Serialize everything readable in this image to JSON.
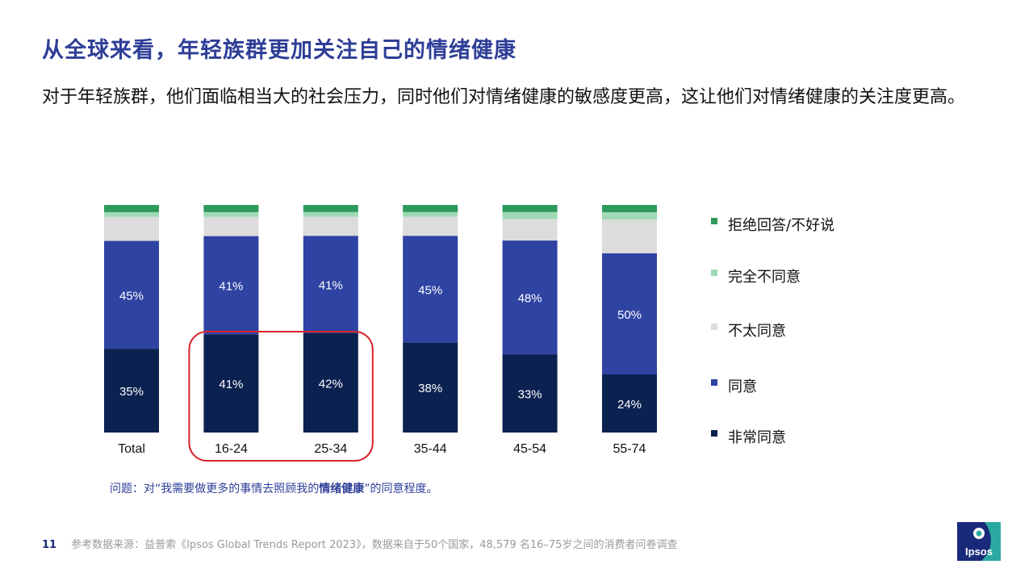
{
  "title": "从全球来看，年轻族群更加关注自己的情绪健康",
  "subtitle": "对于年轻族群，他们面临相当大的社会压力，同时他们对情绪健康的敏感度更高，这让他们对情绪健康的关注度更高。",
  "question": {
    "prefix": "问题：对“我需要做更多的事情去照顾我的",
    "bold": "情绪健康",
    "suffix": "”的同意程度。"
  },
  "footer": {
    "page": "11",
    "source": "参考数据来源：益普索《Ipsos Global Trends Report 2023》，数据来自于50个国家，48,579 名16–75岁之间的消费者问卷调查"
  },
  "logo_text": "Ipsos",
  "colors": {
    "title": "#2e3e97",
    "highlight_box": "#d9232a"
  },
  "highlight": {
    "categories": [
      "16-24",
      "25-34"
    ]
  },
  "chart_data": {
    "type": "bar",
    "stacked": true,
    "unit": "%",
    "categories": [
      "Total",
      "16-24",
      "25-34",
      "35-44",
      "45-54",
      "55-74"
    ],
    "series": [
      {
        "name": "非常同意",
        "color": "#0b2150",
        "values": [
          35,
          41,
          42,
          38,
          33,
          24
        ],
        "labels": [
          "35%",
          "41%",
          "42%",
          "38%",
          "33%",
          "24%"
        ]
      },
      {
        "name": "同意",
        "color": "#2f43a3",
        "values": [
          45,
          41,
          41,
          45,
          48,
          50
        ],
        "labels": [
          "45%",
          "41%",
          "41%",
          "45%",
          "48%",
          "50%"
        ]
      },
      {
        "name": "不太同意",
        "color": "#dcdcdc",
        "values": [
          10,
          8,
          8,
          8,
          9,
          14
        ],
        "labels": []
      },
      {
        "name": "完全不同意",
        "color": "#9fdab4",
        "values": [
          2,
          2,
          2,
          2,
          3,
          3
        ],
        "labels": []
      },
      {
        "name": "拒绝回答/不好说",
        "color": "#2e9a5c",
        "values": [
          3,
          3,
          3,
          3,
          3,
          3
        ],
        "labels": []
      }
    ],
    "legend_order": [
      "拒绝回答/不好说",
      "完全不同意",
      "不太同意",
      "同意",
      "非常同意"
    ],
    "legend_position": "right",
    "ylim": [
      0,
      100
    ],
    "grid": false
  }
}
